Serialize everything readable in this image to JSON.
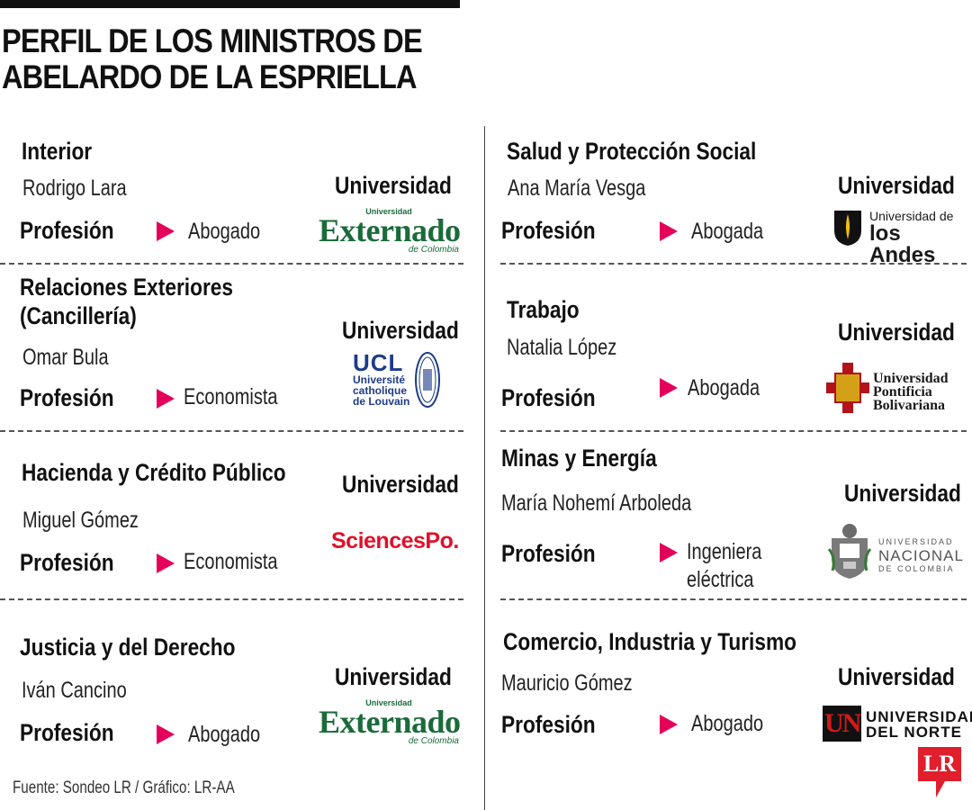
{
  "title_line1": "PERFIL DE LOS MINISTROS DE",
  "title_line2": "ABELARDO DE LA ESPRIELLA",
  "profession_label": "Profesión",
  "university_label": "Universidad",
  "accent_color": "#e4005a",
  "ministers": [
    {
      "ministry": "Interior",
      "name": "Rodrigo Lara",
      "profession": "Abogado",
      "university_logo": "externado-logo"
    },
    {
      "ministry_line1": "Relaciones Exteriores",
      "ministry_line2": "(Cancillería)",
      "name": "Omar Bula",
      "profession": "Economista",
      "university_logo": "ucl-logo"
    },
    {
      "ministry": "Hacienda y Crédito Público",
      "name": "Miguel Gómez",
      "profession": "Economista",
      "university_logo": "sciencespo-logo"
    },
    {
      "ministry": "Justicia y del Derecho",
      "name": "Iván Cancino",
      "profession": "Abogado",
      "university_logo": "externado-logo"
    },
    {
      "ministry": "Salud y Protección Social",
      "name": "Ana María Vesga",
      "profession": "Abogada",
      "university_logo": "los-andes-logo"
    },
    {
      "ministry": "Trabajo",
      "name": "Natalia López",
      "profession": "Abogada",
      "university_logo": "upb-logo"
    },
    {
      "ministry": "Minas y Energía",
      "name": "María Nohemí Arboleda",
      "profession_line1": "Ingeniera",
      "profession_line2": "eléctrica",
      "university_logo": "unal-logo"
    },
    {
      "ministry": "Comercio, Industria y Turismo",
      "name": "Mauricio Gómez",
      "profession": "Abogado",
      "university_logo": "uninorte-logo"
    }
  ],
  "logos": {
    "externado": {
      "small": "Universidad",
      "big": "Externado",
      "sub": "de Colombia"
    },
    "ucl": {
      "big": "UCL",
      "l1": "Université",
      "l2": "catholique",
      "l3": "de Louvain"
    },
    "sciencespo": {
      "text": "SciencesPo."
    },
    "andes": {
      "l1": "Universidad de",
      "l2": "los Andes"
    },
    "upb": {
      "l1": "Universidad",
      "l2": "Pontificia",
      "l3": "Bolivariana",
      "seal": "A Ω U P B"
    },
    "unal": {
      "l1": "UNIVERSIDAD",
      "l2": "NACIONAL",
      "l3": "DE COLOMBIA"
    },
    "uninorte": {
      "mark": "UN",
      "l1": "UNIVERSIDAD",
      "l2": "DEL NORTE"
    }
  },
  "source": "Fuente: Sondeo LR / Gráfico: LR-AA",
  "badge": "LR"
}
